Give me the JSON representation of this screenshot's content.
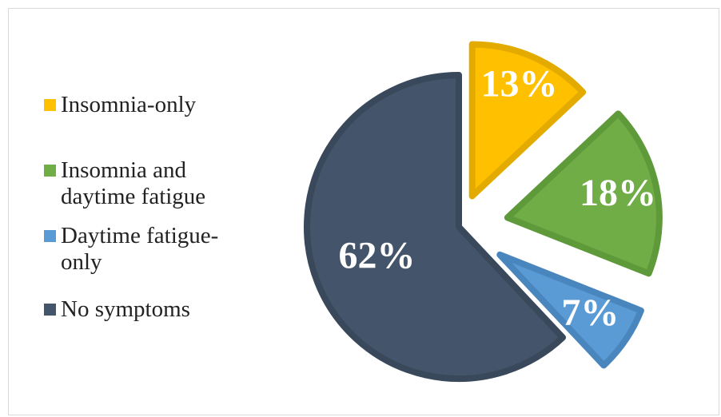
{
  "chart_data": {
    "type": "pie",
    "exploded": true,
    "legend_position": "left",
    "slices": [
      {
        "name": "Insomnia-only",
        "label": "13%",
        "value": 13,
        "color": "#FFC000",
        "edge": "#E3AA00"
      },
      {
        "name": "Insomnia and daytime fatigue",
        "label": "18%",
        "value": 18,
        "color": "#70AD47",
        "edge": "#5F9A3A"
      },
      {
        "name": "Daytime fatigue-only",
        "label": "7%",
        "value": 7,
        "color": "#5B9BD5",
        "edge": "#4A86BE"
      },
      {
        "name": "No symptoms",
        "label": "62%",
        "value": 62,
        "color": "#44546A",
        "edge": "#3A485B"
      }
    ]
  }
}
